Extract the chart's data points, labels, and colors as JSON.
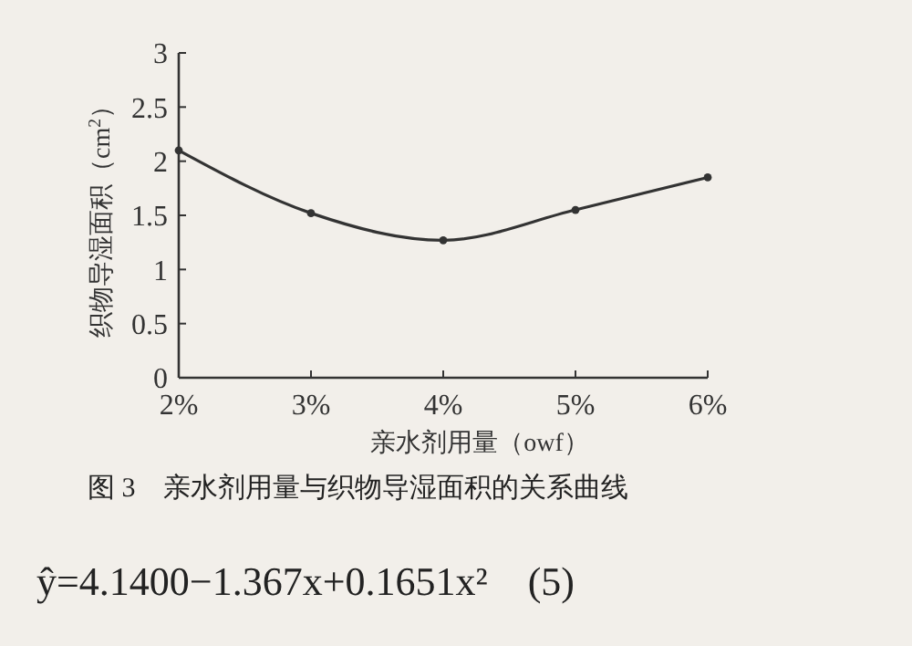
{
  "chart_data": {
    "type": "line",
    "categories": [
      "2%",
      "3%",
      "4%",
      "5%",
      "6%"
    ],
    "values": [
      2.1,
      1.52,
      1.27,
      1.55,
      1.85
    ],
    "color": "#333333",
    "marker": "circle",
    "line_style": "solid",
    "grid": false,
    "ylim": [
      0,
      3
    ],
    "yticks": [
      0,
      0.5,
      1,
      1.5,
      2,
      2.5,
      3
    ],
    "xlabel": "亲水剂用量（owf）",
    "ylabel": "织物导湿面积（cm$^{2}$）",
    "annotations": [
      "图 3　亲水剂用量与织物导湿面积的关系曲线",
      "ŷ=4.1400−1.367x+0.1651x²　(5)"
    ]
  }
}
